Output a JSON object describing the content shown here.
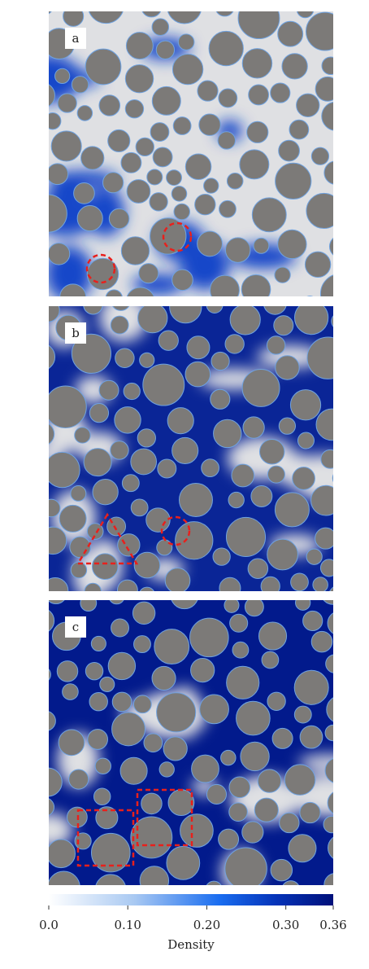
{
  "panels": [
    {
      "label": "a"
    },
    {
      "label": "b"
    },
    {
      "label": "c"
    }
  ],
  "colorbar": {
    "label": "Density",
    "lim": [
      0,
      0.36
    ],
    "ticks": [
      {
        "value": 0,
        "label": "0.0"
      },
      {
        "value": 0.1,
        "label": "0.10"
      },
      {
        "value": 0.2,
        "label": "0.20"
      },
      {
        "value": 0.3,
        "label": "0.30"
      },
      0.36
    ]
  }
}
